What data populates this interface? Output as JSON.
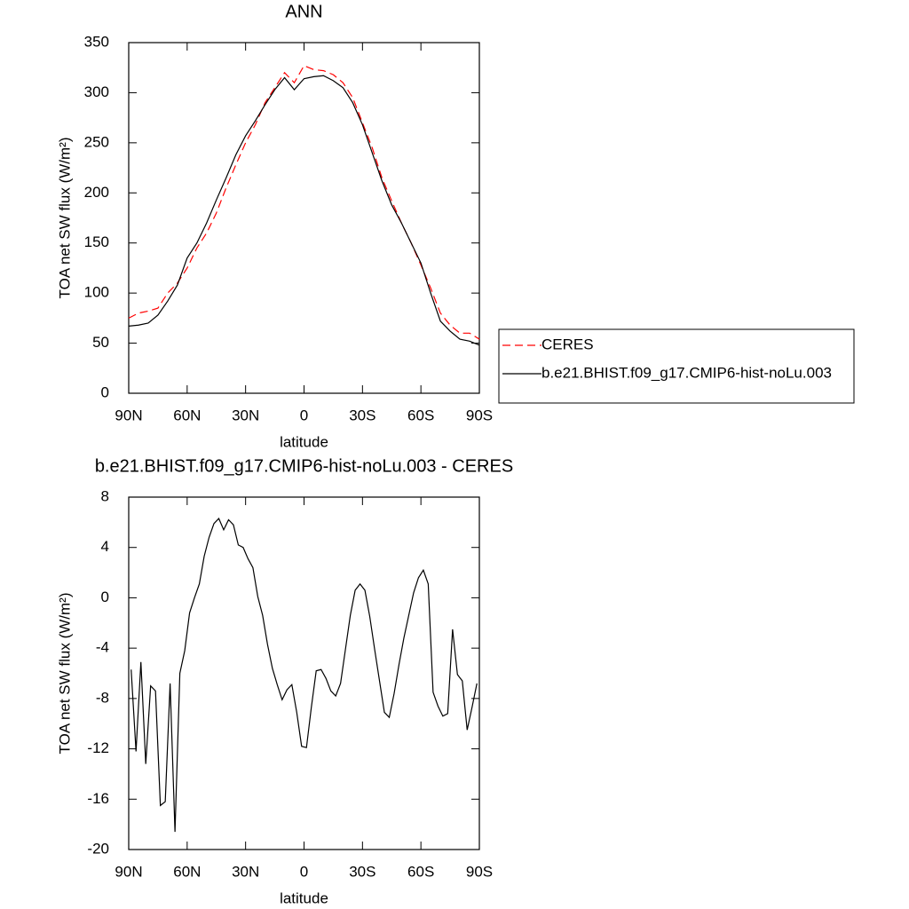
{
  "chart_data": [
    {
      "type": "line",
      "title": "ANN",
      "xlabel": "latitude",
      "ylabel": "TOA net SW flux (W/m²)",
      "xlim": [
        90,
        -90
      ],
      "xticks": [
        {
          "value": 90,
          "label": "90N"
        },
        {
          "value": 60,
          "label": "60N"
        },
        {
          "value": 30,
          "label": "30N"
        },
        0,
        {
          "value": -30,
          "label": "30S"
        },
        {
          "value": -60,
          "label": "60S"
        },
        {
          "value": -90,
          "label": "90S"
        }
      ],
      "ylim": [
        0,
        350
      ],
      "yticks": [
        0,
        50,
        100,
        150,
        200,
        250,
        300,
        350
      ],
      "legend": "right",
      "x": [
        90,
        85,
        80,
        75,
        70,
        65,
        60,
        55,
        50,
        45,
        40,
        35,
        30,
        25,
        20,
        15,
        10,
        5,
        0,
        -5,
        -10,
        -15,
        -20,
        -25,
        -30,
        -35,
        -40,
        -45,
        -50,
        -55,
        -60,
        -65,
        -70,
        -75,
        -80,
        -85,
        -90
      ],
      "series": [
        {
          "name": "CERES",
          "color": "#ff0000",
          "dashed": true,
          "values": [
            75,
            80,
            82,
            85,
            100,
            110,
            125,
            145,
            160,
            180,
            205,
            228,
            250,
            268,
            290,
            305,
            320,
            310,
            327,
            323,
            322,
            318,
            310,
            295,
            270,
            245,
            215,
            192,
            170,
            150,
            128,
            105,
            80,
            68,
            60,
            60,
            54
          ]
        },
        {
          "name": "b.e21.BHIST.f09_g17.CMIP6-hist-noLu.003",
          "color": "#000000",
          "dashed": false,
          "values": [
            67,
            68,
            70,
            78,
            92,
            108,
            135,
            150,
            170,
            193,
            215,
            238,
            257,
            272,
            288,
            303,
            315,
            303,
            314,
            316,
            317,
            312,
            305,
            290,
            268,
            240,
            212,
            188,
            170,
            150,
            130,
            100,
            72,
            62,
            54,
            52,
            48
          ]
        }
      ]
    },
    {
      "type": "line",
      "title": "b.e21.BHIST.f09_g17.CMIP6-hist-noLu.003 - CERES",
      "xlabel": "latitude",
      "ylabel": "TOA net SW flux (W/m²)",
      "xlim": [
        90,
        -90
      ],
      "xticks": [
        {
          "value": 90,
          "label": "90N"
        },
        {
          "value": 60,
          "label": "60N"
        },
        {
          "value": 30,
          "label": "30N"
        },
        0,
        {
          "value": -30,
          "label": "30S"
        },
        {
          "value": -60,
          "label": "60S"
        },
        {
          "value": -90,
          "label": "90S"
        }
      ],
      "ylim": [
        -20,
        8
      ],
      "yticks": [
        -20,
        -16,
        -12,
        -8,
        -4,
        0,
        4,
        8
      ],
      "x": [
        88.75,
        86.25,
        83.75,
        81.25,
        78.75,
        76.25,
        73.75,
        71.25,
        68.75,
        66.25,
        63.75,
        61.25,
        58.75,
        56.25,
        53.75,
        51.25,
        48.75,
        46.25,
        43.75,
        41.25,
        38.75,
        36.25,
        33.75,
        31.25,
        28.75,
        26.25,
        23.75,
        21.25,
        18.75,
        16.25,
        13.75,
        11.25,
        8.75,
        6.25,
        3.75,
        1.25,
        -1.25,
        -3.75,
        -6.25,
        -8.75,
        -11.25,
        -13.75,
        -16.25,
        -18.75,
        -21.25,
        -23.75,
        -26.25,
        -28.75,
        -31.25,
        -33.75,
        -36.25,
        -38.75,
        -41.25,
        -43.75,
        -46.25,
        -48.75,
        -51.25,
        -53.75,
        -56.25,
        -58.75,
        -61.25,
        -63.75,
        -66.25,
        -68.75,
        -71.25,
        -73.75,
        -76.25,
        -78.75,
        -81.25,
        -83.75,
        -86.25,
        -88.75
      ],
      "series": [
        {
          "color": "#000000",
          "dashed": false,
          "values": [
            -5.7,
            -12.2,
            -5.1,
            -13.2,
            -7,
            -7.4,
            -16.5,
            -16.2,
            -6.8,
            -18.6,
            -6,
            -4.2,
            -1.2,
            0,
            1.1,
            3.3,
            4.8,
            5.9,
            6.3,
            5.4,
            6.2,
            5.8,
            4.2,
            4,
            3.1,
            2.4,
            0.1,
            -1.4,
            -3.7,
            -5.6,
            -6.9,
            -8.1,
            -7.3,
            -6.9,
            -9.1,
            -11.8,
            -11.9,
            -8.7,
            -5.8,
            -5.7,
            -6.4,
            -7.4,
            -7.8,
            -6.8,
            -4.1,
            -1.4,
            0.6,
            1.1,
            0.6,
            -1.5,
            -4.1,
            -6.6,
            -9.1,
            -9.5,
            -7.6,
            -5.3,
            -3.2,
            -1.4,
            0.4,
            1.6,
            2.2,
            1.1,
            -7.5,
            -8.6,
            -9.4,
            -9.2,
            -2.5,
            -6.1,
            -6.6,
            -10.5,
            -8.7,
            -6.8
          ]
        }
      ]
    }
  ]
}
